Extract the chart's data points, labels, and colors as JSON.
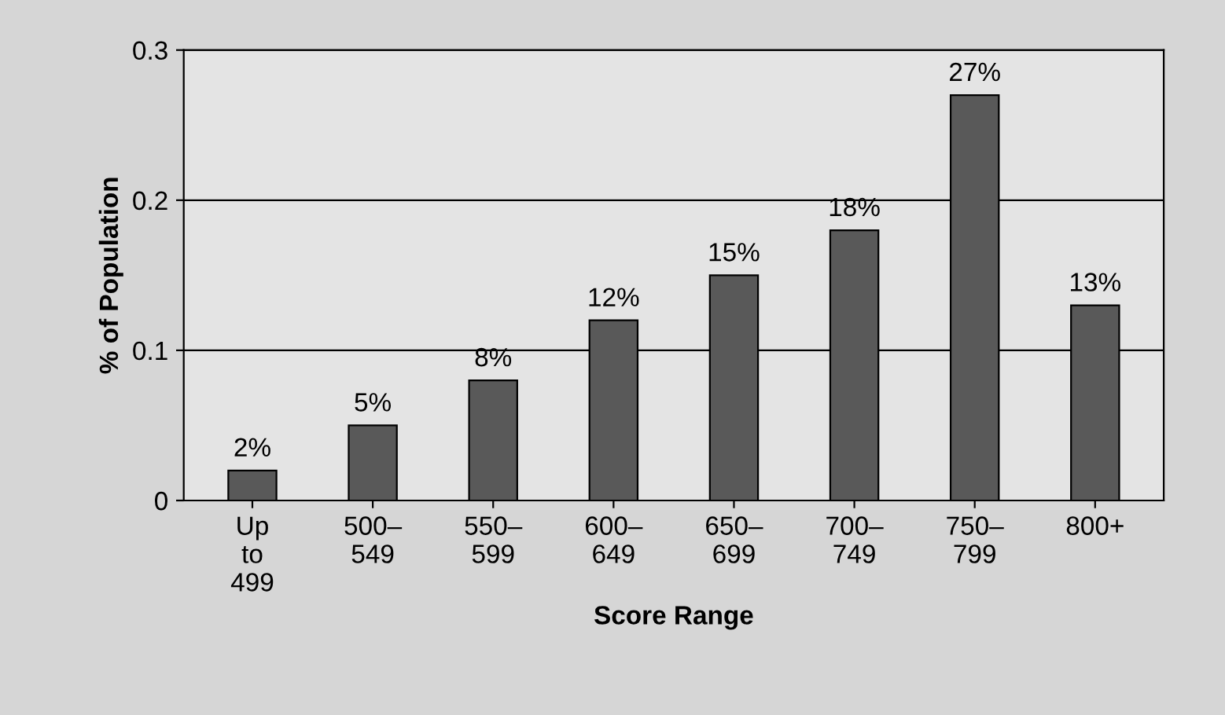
{
  "chart_data": {
    "type": "bar",
    "xlabel": "Score Range",
    "ylabel": "% of Population",
    "categories": [
      "Up\nto\n499",
      "500–\n549",
      "550–\n599",
      "600–\n649",
      "650–\n699",
      "700–\n749",
      "750–\n799",
      "800+"
    ],
    "values": [
      0.02,
      0.05,
      0.08,
      0.12,
      0.15,
      0.18,
      0.27,
      0.13
    ],
    "value_labels": [
      "2%",
      "5%",
      "8%",
      "12%",
      "15%",
      "18%",
      "27%",
      "13%"
    ],
    "color": "#595959",
    "ylim": [
      0,
      0.3
    ],
    "yticks": [
      0,
      0.1,
      0.2,
      0.3
    ],
    "grid": "y"
  }
}
